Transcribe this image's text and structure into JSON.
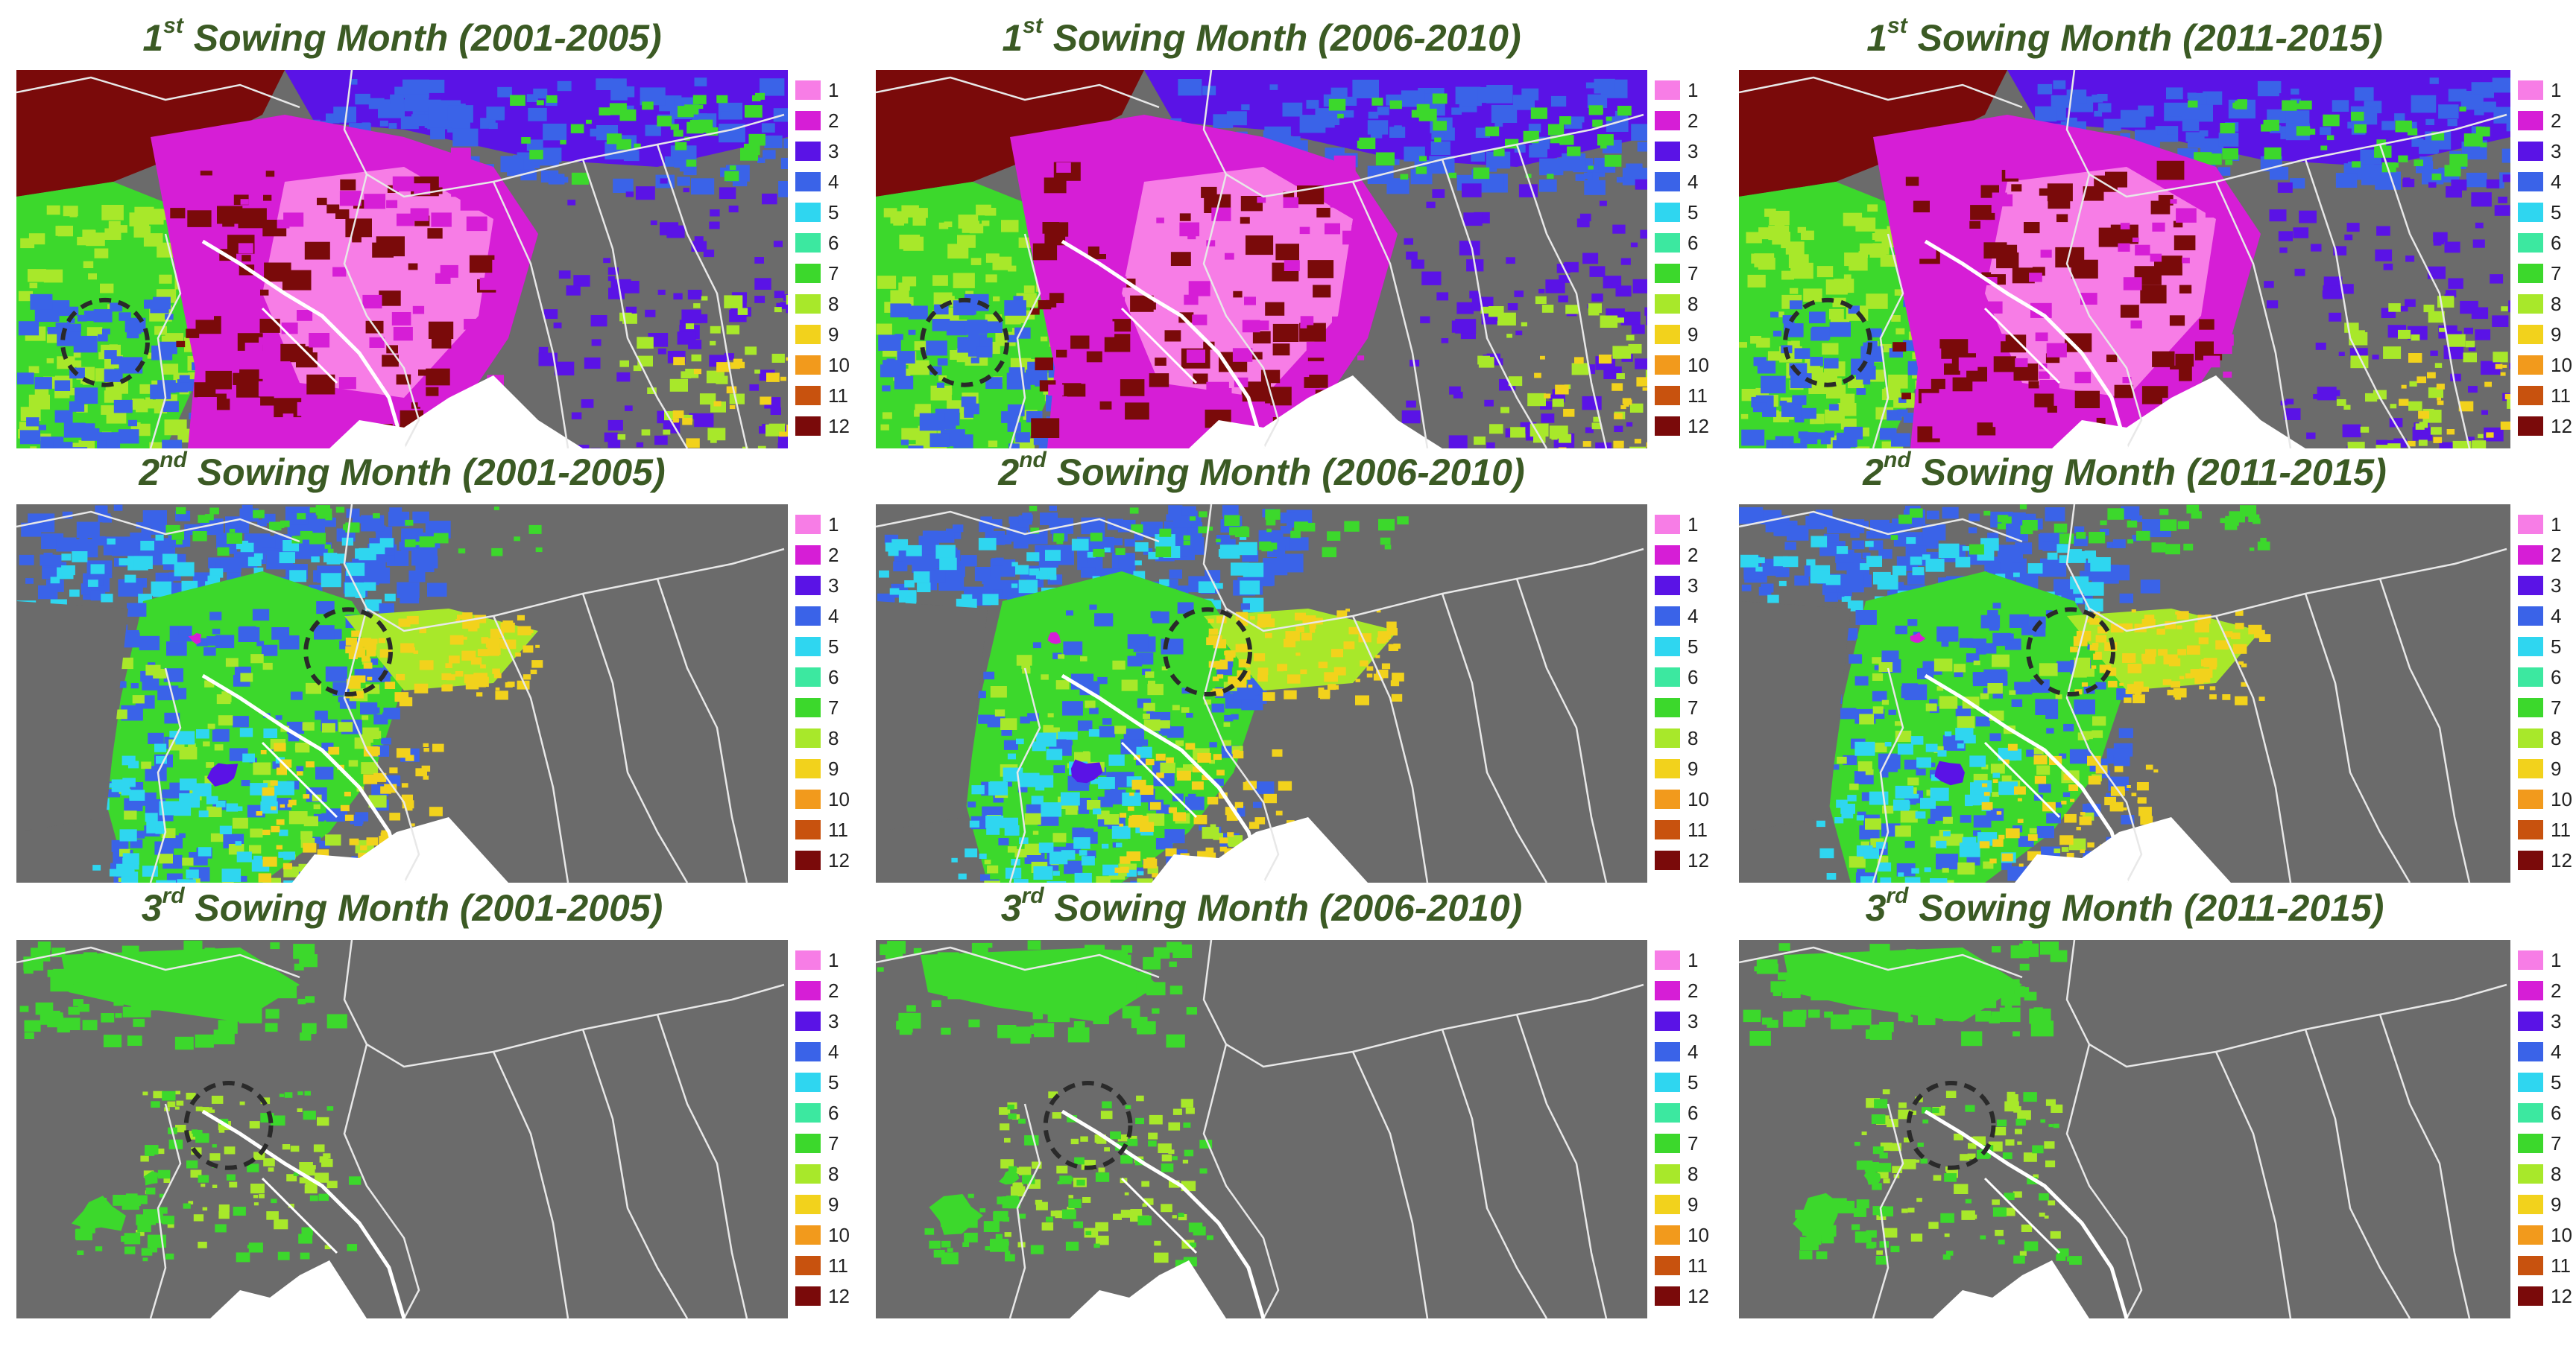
{
  "colors": {
    "title": "#3b5a24",
    "background": "#6b6b6b",
    "land_white": "#ffffff",
    "circle": "#2a2a2a"
  },
  "legend": {
    "labels": [
      "1",
      "2",
      "3",
      "4",
      "5",
      "6",
      "7",
      "8",
      "9",
      "10",
      "11",
      "12"
    ],
    "colors": [
      "#f77de6",
      "#d61ed6",
      "#5a13e6",
      "#3a63e8",
      "#2fd6f0",
      "#3ce8a0",
      "#3cd82c",
      "#a8e82a",
      "#f2d21c",
      "#f29a1c",
      "#c8520e",
      "#7a0a0a"
    ]
  },
  "panels": [
    {
      "ord": "1",
      "sup": "st",
      "rest": " Sowing Month (2001-2005)",
      "pattern": "first",
      "circle": [
        0.115,
        0.72,
        0.055
      ]
    },
    {
      "ord": "1",
      "sup": "st",
      "rest": " Sowing Month (2006-2010)",
      "pattern": "first",
      "circle": [
        0.115,
        0.72,
        0.055
      ]
    },
    {
      "ord": "1",
      "sup": "st",
      "rest": " Sowing Month (2011-2015)",
      "pattern": "first",
      "circle": [
        0.115,
        0.72,
        0.055
      ]
    },
    {
      "ord": "2",
      "sup": "nd",
      "rest": " Sowing Month (2001-2005)",
      "pattern": "second",
      "circle": [
        0.43,
        0.39,
        0.055
      ]
    },
    {
      "ord": "2",
      "sup": "nd",
      "rest": " Sowing Month (2006-2010)",
      "pattern": "second",
      "circle": [
        0.43,
        0.39,
        0.055
      ]
    },
    {
      "ord": "2",
      "sup": "nd",
      "rest": " Sowing Month (2011-2015)",
      "pattern": "second",
      "circle": [
        0.43,
        0.39,
        0.055
      ]
    },
    {
      "ord": "3",
      "sup": "rd",
      "rest": " Sowing Month (2001-2005)",
      "pattern": "third",
      "circle": [
        0.275,
        0.49,
        0.055
      ]
    },
    {
      "ord": "3",
      "sup": "rd",
      "rest": " Sowing Month (2006-2010)",
      "pattern": "third",
      "circle": [
        0.275,
        0.49,
        0.055
      ]
    },
    {
      "ord": "3",
      "sup": "rd",
      "rest": " Sowing Month (2011-2015)",
      "pattern": "third",
      "circle": [
        0.275,
        0.49,
        0.055
      ]
    }
  ]
}
